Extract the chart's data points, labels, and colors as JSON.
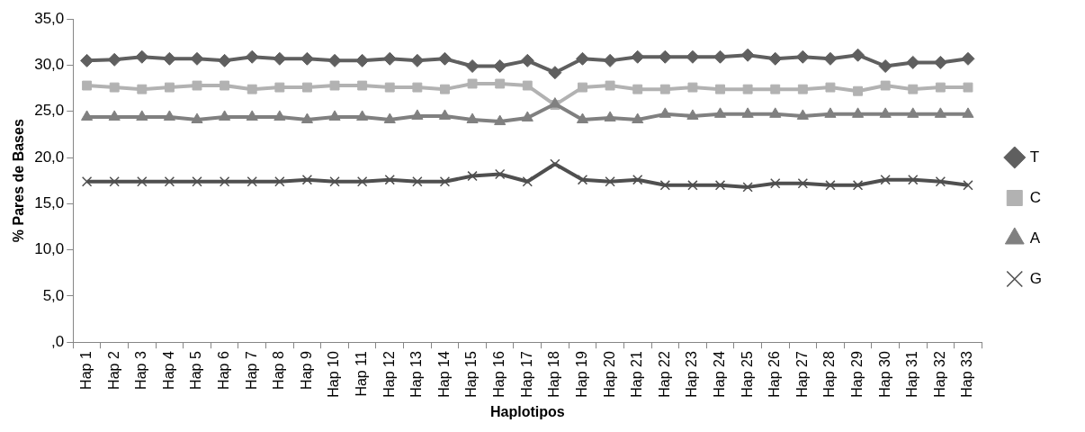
{
  "chart_data": {
    "type": "line",
    "xlabel": "Haplotipos",
    "ylabel": "% Pares de Bases",
    "categories": [
      "Hap 1",
      "Hap 2",
      "Hap 3",
      "Hap 4",
      "Hap 5",
      "Hap 6",
      "Hap 7",
      "Hap 8",
      "Hap 9",
      "Hap 10",
      "Hap 11",
      "Hap 12",
      "Hap 13",
      "Hap 14",
      "Hap 15",
      "Hap 16",
      "Hap 17",
      "Hap 18",
      "Hap 19",
      "Hap 20",
      "Hap 21",
      "Hap 22",
      "Hap 23",
      "Hap 24",
      "Hap 25",
      "Hap 26",
      "Hap 27",
      "Hap 28",
      "Hap 29",
      "Hap 30",
      "Hap 31",
      "Hap 32",
      "Hap 33"
    ],
    "series": [
      {
        "name": "T",
        "color": "#5f5f5f",
        "marker": "diamond",
        "values": [
          30.5,
          30.6,
          30.9,
          30.7,
          30.7,
          30.5,
          30.9,
          30.7,
          30.7,
          30.5,
          30.5,
          30.7,
          30.5,
          30.7,
          29.9,
          29.9,
          30.5,
          29.2,
          30.7,
          30.5,
          30.9,
          30.9,
          30.9,
          30.9,
          31.1,
          30.7,
          30.9,
          30.7,
          31.1,
          29.9,
          30.3,
          30.3,
          30.7
        ]
      },
      {
        "name": "C",
        "color": "#b2b2b2",
        "marker": "square",
        "values": [
          27.8,
          27.6,
          27.4,
          27.6,
          27.8,
          27.8,
          27.4,
          27.6,
          27.6,
          27.8,
          27.8,
          27.6,
          27.6,
          27.4,
          28.0,
          28.0,
          27.8,
          25.7,
          27.6,
          27.8,
          27.4,
          27.4,
          27.6,
          27.4,
          27.4,
          27.4,
          27.4,
          27.6,
          27.2,
          27.8,
          27.4,
          27.6,
          27.6
        ]
      },
      {
        "name": "A",
        "color": "#808080",
        "marker": "triangle",
        "values": [
          24.4,
          24.4,
          24.4,
          24.4,
          24.1,
          24.4,
          24.4,
          24.4,
          24.1,
          24.4,
          24.4,
          24.1,
          24.5,
          24.5,
          24.1,
          23.9,
          24.3,
          25.8,
          24.1,
          24.3,
          24.1,
          24.7,
          24.5,
          24.7,
          24.7,
          24.7,
          24.5,
          24.7,
          24.7,
          24.7,
          24.7,
          24.7,
          24.7
        ]
      },
      {
        "name": "G",
        "color": "#4f4f4f",
        "marker": "cross",
        "values": [
          17.4,
          17.4,
          17.4,
          17.4,
          17.4,
          17.4,
          17.4,
          17.4,
          17.6,
          17.4,
          17.4,
          17.6,
          17.4,
          17.4,
          18.0,
          18.2,
          17.4,
          19.3,
          17.6,
          17.4,
          17.6,
          17.0,
          17.0,
          17.0,
          16.8,
          17.2,
          17.2,
          17.0,
          17.0,
          17.6,
          17.6,
          17.4,
          17.0
        ]
      }
    ],
    "ylim": [
      0,
      35
    ],
    "yticks": [
      {
        "value": 0,
        "label": ",0"
      },
      {
        "value": 5,
        "label": "5,0"
      },
      {
        "value": 10,
        "label": "10,0"
      },
      {
        "value": 15,
        "label": "15,0"
      },
      {
        "value": 20,
        "label": "20,0"
      },
      {
        "value": 25,
        "label": "25,0"
      },
      {
        "value": 30,
        "label": "30,0"
      },
      {
        "value": 35,
        "label": "35,0"
      }
    ],
    "grid": false,
    "legend": "right",
    "line_style": "solid"
  }
}
